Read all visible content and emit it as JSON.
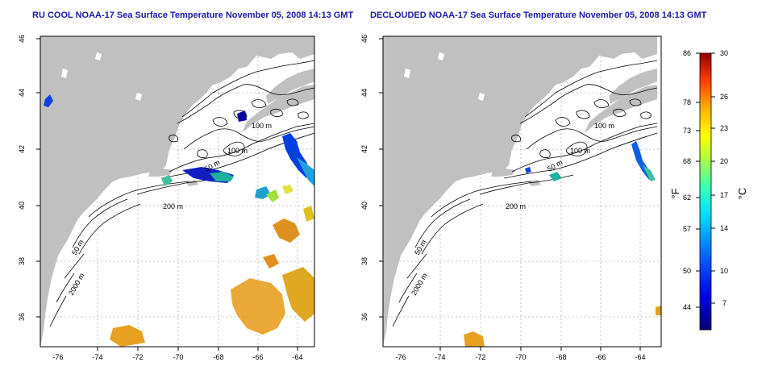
{
  "left_map": {
    "title": "RU COOL NOAA-17 Sea Surface Temperature November 05, 2008 14:13 GMT",
    "contours": [
      "100 m",
      "100 m",
      "50 m",
      "200 m",
      "50 m",
      "2000 m"
    ]
  },
  "right_map": {
    "title": "DECLOUDED NOAA-17 Sea Surface Temperature November 05, 2008 14:13 GMT",
    "contours": [
      "100 m",
      "100 m",
      "50 m",
      "200 m",
      "50 m",
      "2000 m"
    ]
  },
  "longitude_ticks": [
    "-76",
    "-74",
    "-72",
    "-70",
    "-68",
    "-66",
    "-64"
  ],
  "latitude_ticks": [
    "46",
    "44",
    "42",
    "40",
    "38",
    "36"
  ],
  "colorbar": {
    "fahrenheit_label": "°F",
    "celsius_label": "°C",
    "fahrenheit_ticks": [
      "86",
      "78",
      "73",
      "68",
      "62",
      "57",
      "50",
      "44"
    ],
    "celsius_ticks": [
      "30",
      "26",
      "23",
      "20",
      "17",
      "14",
      "10",
      "7"
    ]
  },
  "colors": {
    "land": "#c0c0c0",
    "ocean": "#ffffff",
    "grid": "#b0b0b0",
    "title": "#1a1aa8"
  }
}
